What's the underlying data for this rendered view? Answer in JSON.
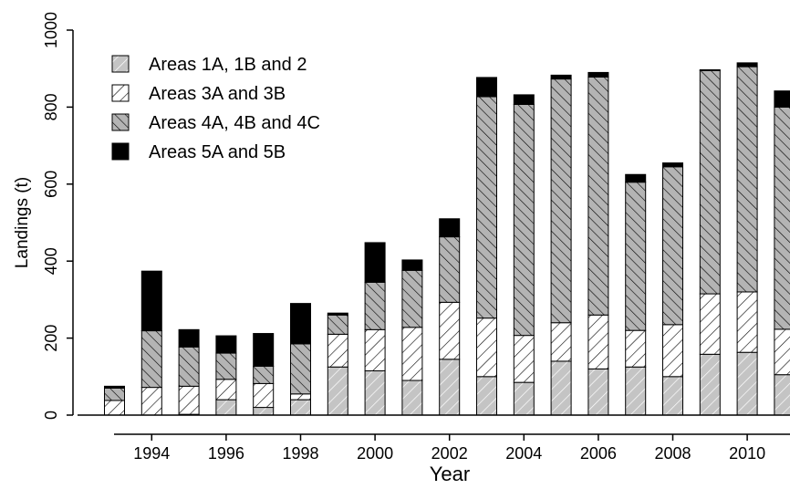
{
  "chart_data": {
    "type": "bar",
    "stacked": true,
    "title": "",
    "xlabel": "Year",
    "ylabel": "Landings (t)",
    "ylim": [
      0,
      1000
    ],
    "yticks": [
      0,
      200,
      400,
      600,
      800,
      1000
    ],
    "xtick_labels": [
      "1994",
      "1996",
      "1998",
      "2000",
      "2002",
      "2004",
      "2006",
      "2008",
      "2010"
    ],
    "categories": [
      "1993",
      "1994",
      "1995",
      "1996",
      "1997",
      "1998",
      "1999",
      "2000",
      "2001",
      "2002",
      "2003",
      "2004",
      "2005",
      "2006",
      "2007",
      "2008",
      "2009",
      "2010",
      "2011"
    ],
    "legend_position": "top-left",
    "grid": false,
    "series": [
      {
        "name": "Areas 1A, 1B and 2",
        "pattern": "grey-fill-light-hatch",
        "values": [
          0,
          0,
          2,
          40,
          20,
          40,
          125,
          115,
          90,
          145,
          100,
          85,
          140,
          120,
          125,
          100,
          158,
          163,
          105
        ]
      },
      {
        "name": "Areas 3A and 3B",
        "pattern": "white-fill-forward-hatch",
        "values": [
          38,
          72,
          73,
          53,
          62,
          15,
          85,
          107,
          138,
          148,
          152,
          122,
          100,
          140,
          95,
          135,
          157,
          157,
          118
        ]
      },
      {
        "name": "Areas 4A, 4B and 4C",
        "pattern": "grey-fill-back-hatch",
        "values": [
          32,
          147,
          102,
          68,
          45,
          130,
          50,
          123,
          148,
          170,
          575,
          600,
          633,
          618,
          385,
          410,
          580,
          585,
          577
        ]
      },
      {
        "name": "Areas 5A and 5B",
        "pattern": "solid-black",
        "values": [
          5,
          155,
          45,
          45,
          85,
          105,
          5,
          103,
          27,
          47,
          50,
          25,
          10,
          12,
          20,
          10,
          2,
          10,
          42
        ]
      }
    ]
  }
}
